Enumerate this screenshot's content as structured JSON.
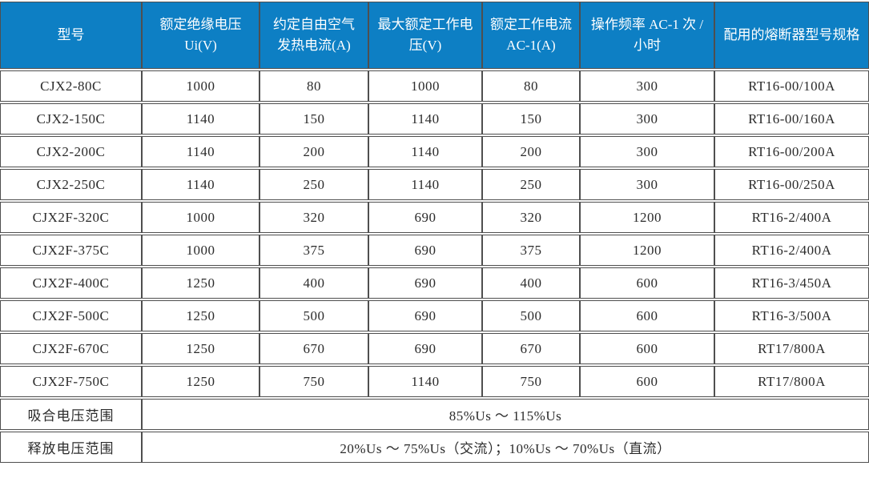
{
  "theme": {
    "header_bg": "#0d7fc4",
    "header_fg": "#ffffff",
    "border_color": "#4f4f4f",
    "body_fg": "#2b2b2b"
  },
  "table": {
    "columns": [
      "型号",
      "额定绝缘电压 Ui(V)",
      "约定自由空气发热电流(A)",
      "最大额定工作电压(V)",
      "额定工作电流 AC-1(A)",
      "操作频率 AC-1 次 / 小时",
      "配用的熔断器型号规格"
    ],
    "rows": [
      [
        "CJX2-80C",
        "1000",
        "80",
        "1000",
        "80",
        "300",
        "RT16-00/100A"
      ],
      [
        "CJX2-150C",
        "1140",
        "150",
        "1140",
        "150",
        "300",
        "RT16-00/160A"
      ],
      [
        "CJX2-200C",
        "1140",
        "200",
        "1140",
        "200",
        "300",
        "RT16-00/200A"
      ],
      [
        "CJX2-250C",
        "1140",
        "250",
        "1140",
        "250",
        "300",
        "RT16-00/250A"
      ],
      [
        "CJX2F-320C",
        "1000",
        "320",
        "690",
        "320",
        "1200",
        "RT16-2/400A"
      ],
      [
        "CJX2F-375C",
        "1000",
        "375",
        "690",
        "375",
        "1200",
        "RT16-2/400A"
      ],
      [
        "CJX2F-400C",
        "1250",
        "400",
        "690",
        "400",
        "600",
        "RT16-3/450A"
      ],
      [
        "CJX2F-500C",
        "1250",
        "500",
        "690",
        "500",
        "600",
        "RT16-3/500A"
      ],
      [
        "CJX2F-670C",
        "1250",
        "670",
        "690",
        "670",
        "600",
        "RT17/800A"
      ],
      [
        "CJX2F-750C",
        "1250",
        "750",
        "1140",
        "750",
        "600",
        "RT17/800A"
      ]
    ],
    "footer_rows": [
      {
        "label": "吸合电压范围",
        "value": "85%Us ～ 115%Us"
      },
      {
        "label": "释放电压范围",
        "value": "20%Us ～ 75%Us（交流）；10%Us ～ 70%Us（直流）"
      }
    ]
  }
}
